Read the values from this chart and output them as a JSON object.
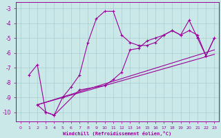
{
  "xlabel": "Windchill (Refroidissement éolien,°C)",
  "bg_color": "#cbe8e8",
  "grid_color": "#aacece",
  "line_color": "#990099",
  "xlim": [
    -0.5,
    23.5
  ],
  "ylim": [
    -10.6,
    -2.6
  ],
  "yticks": [
    -10,
    -9,
    -8,
    -7,
    -6,
    -5,
    -4,
    -3
  ],
  "xticks": [
    0,
    1,
    2,
    3,
    4,
    5,
    6,
    7,
    8,
    9,
    10,
    11,
    12,
    13,
    14,
    15,
    16,
    17,
    18,
    19,
    20,
    21,
    22,
    23
  ],
  "series1_x": [
    1,
    2,
    3,
    4,
    5,
    6,
    7,
    8,
    9,
    10,
    11,
    12,
    13,
    14,
    15,
    16,
    17,
    18,
    19,
    20,
    21,
    22,
    23
  ],
  "series1_y": [
    -7.5,
    -6.8,
    -10.0,
    -10.2,
    -9.0,
    -8.3,
    -7.5,
    -5.3,
    -3.7,
    -3.2,
    -3.2,
    -4.8,
    -5.3,
    -5.5,
    -5.5,
    -5.3,
    -4.8,
    -4.5,
    -4.8,
    -3.8,
    -5.0,
    -6.2,
    -5.0
  ],
  "series2_x": [
    2,
    3,
    4,
    7,
    10,
    11,
    12,
    13,
    14,
    15,
    16,
    17,
    18,
    19,
    20,
    21,
    22,
    23
  ],
  "series2_y": [
    -9.5,
    -10.0,
    -10.2,
    -8.5,
    -8.2,
    -7.8,
    -7.3,
    -5.8,
    -5.7,
    -5.2,
    -5.0,
    -4.8,
    -4.5,
    -4.8,
    -4.5,
    -4.8,
    -6.2,
    -5.0
  ],
  "series3_x": [
    2,
    23
  ],
  "series3_y": [
    -9.5,
    -6.1
  ],
  "series4_x": [
    2,
    23
  ],
  "series4_y": [
    -9.5,
    -5.8
  ]
}
